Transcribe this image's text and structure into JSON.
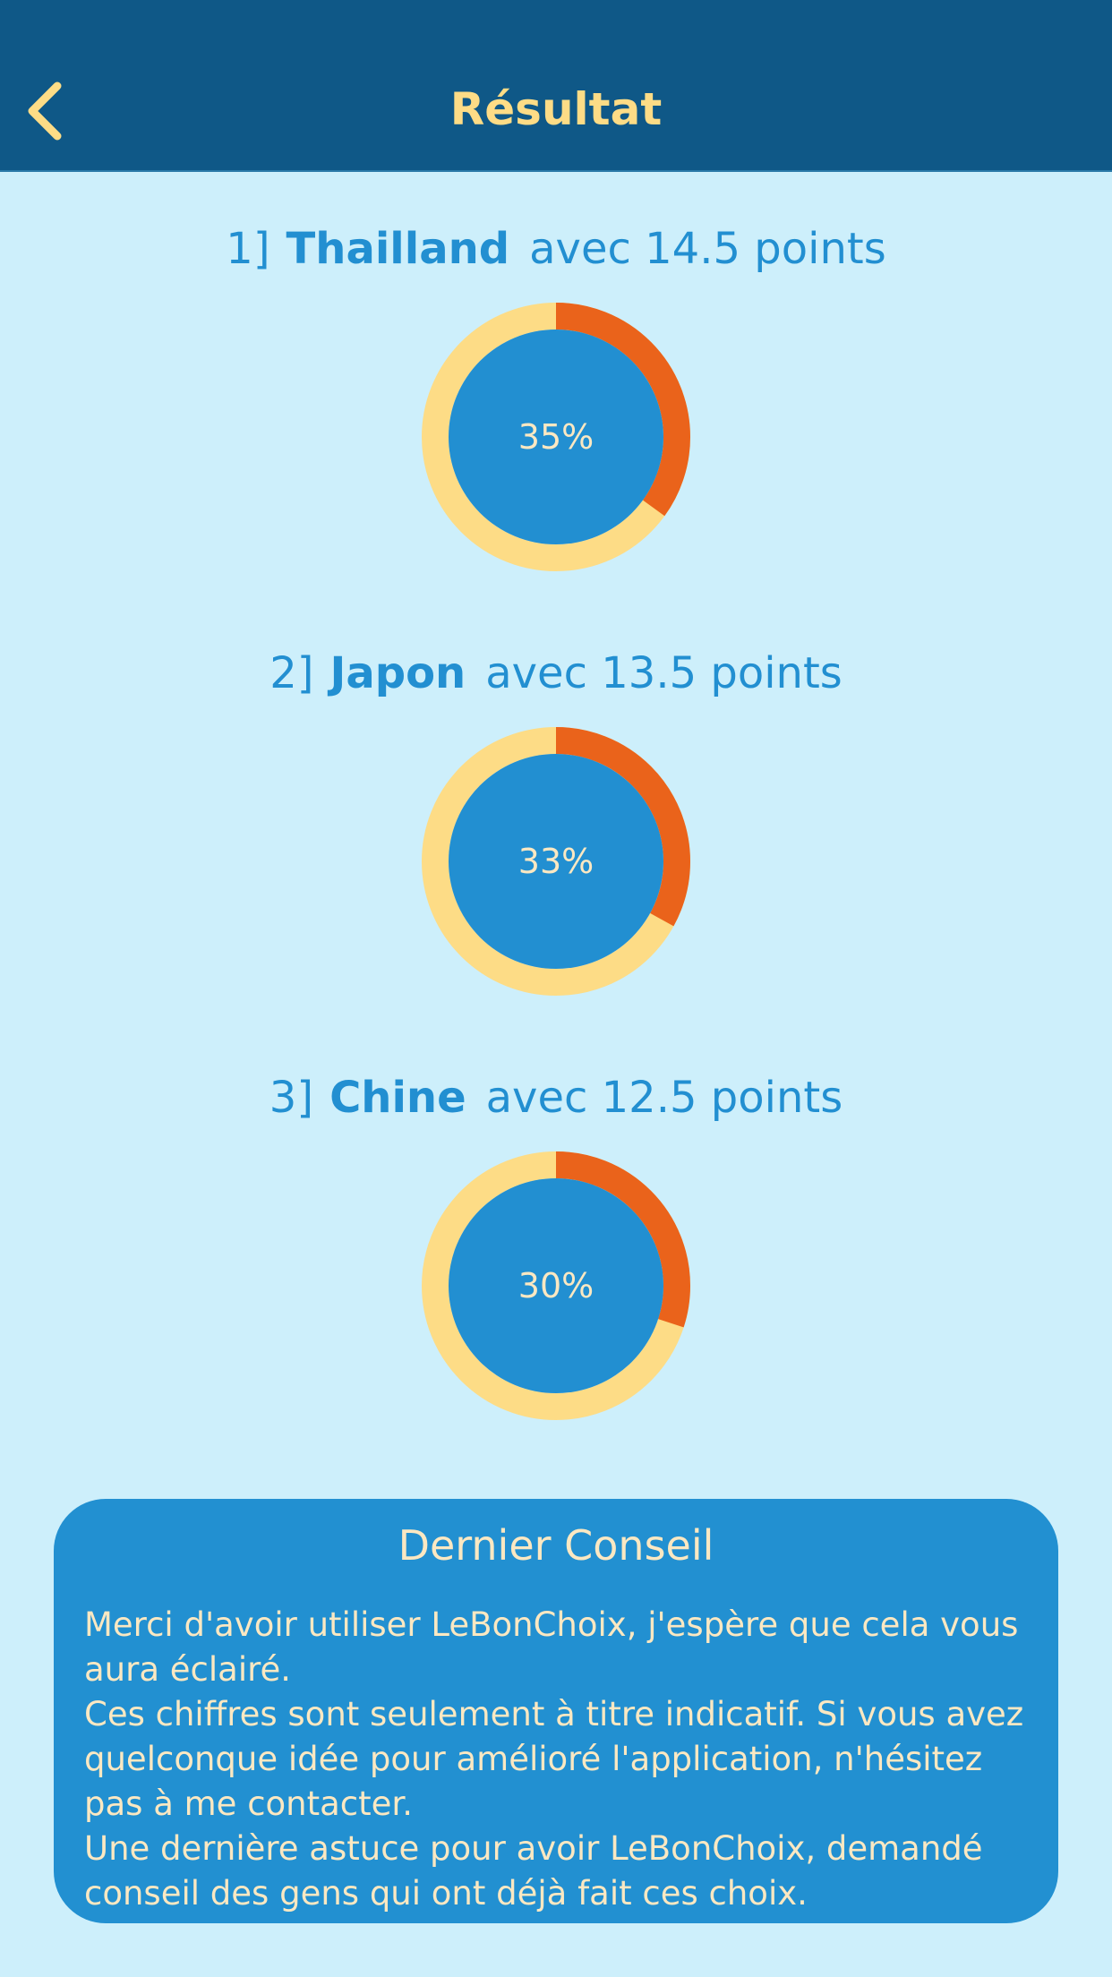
{
  "header": {
    "title": "Résultat",
    "back_icon": "chevron-left-icon"
  },
  "colors": {
    "header_bg": "#0f5887",
    "header_text": "#fddc86",
    "page_bg": "#cdeffb",
    "accent_blue": "#228fd1",
    "ring_yellow": "#fddc86",
    "ring_orange": "#ea631b",
    "advice_bg": "#2290d1",
    "advice_text": "#fbe8c2"
  },
  "results": [
    {
      "rank": "1]",
      "country": "Thailland",
      "points_text": "avec 14.5 points",
      "percent_label": "35%",
      "percent": 35
    },
    {
      "rank": "2]",
      "country": "Japon",
      "points_text": "avec 13.5 points",
      "percent_label": "33%",
      "percent": 33
    },
    {
      "rank": "3]",
      "country": "Chine",
      "points_text": "avec 12.5 points",
      "percent_label": "30%",
      "percent": 30
    }
  ],
  "advice": {
    "title": "Dernier Conseil",
    "paragraphs": [
      "Merci d'avoir utiliser LeBonChoix, j'espère que cela vous aura éclairé.",
      "Ces chiffres sont seulement à titre indicatif. Si vous avez quelconque idée pour amélioré l'application, n'hésitez pas à me contacter.",
      "Une dernière astuce pour avoir LeBonChoix, demandé conseil des gens qui ont déjà fait ces choix."
    ]
  }
}
